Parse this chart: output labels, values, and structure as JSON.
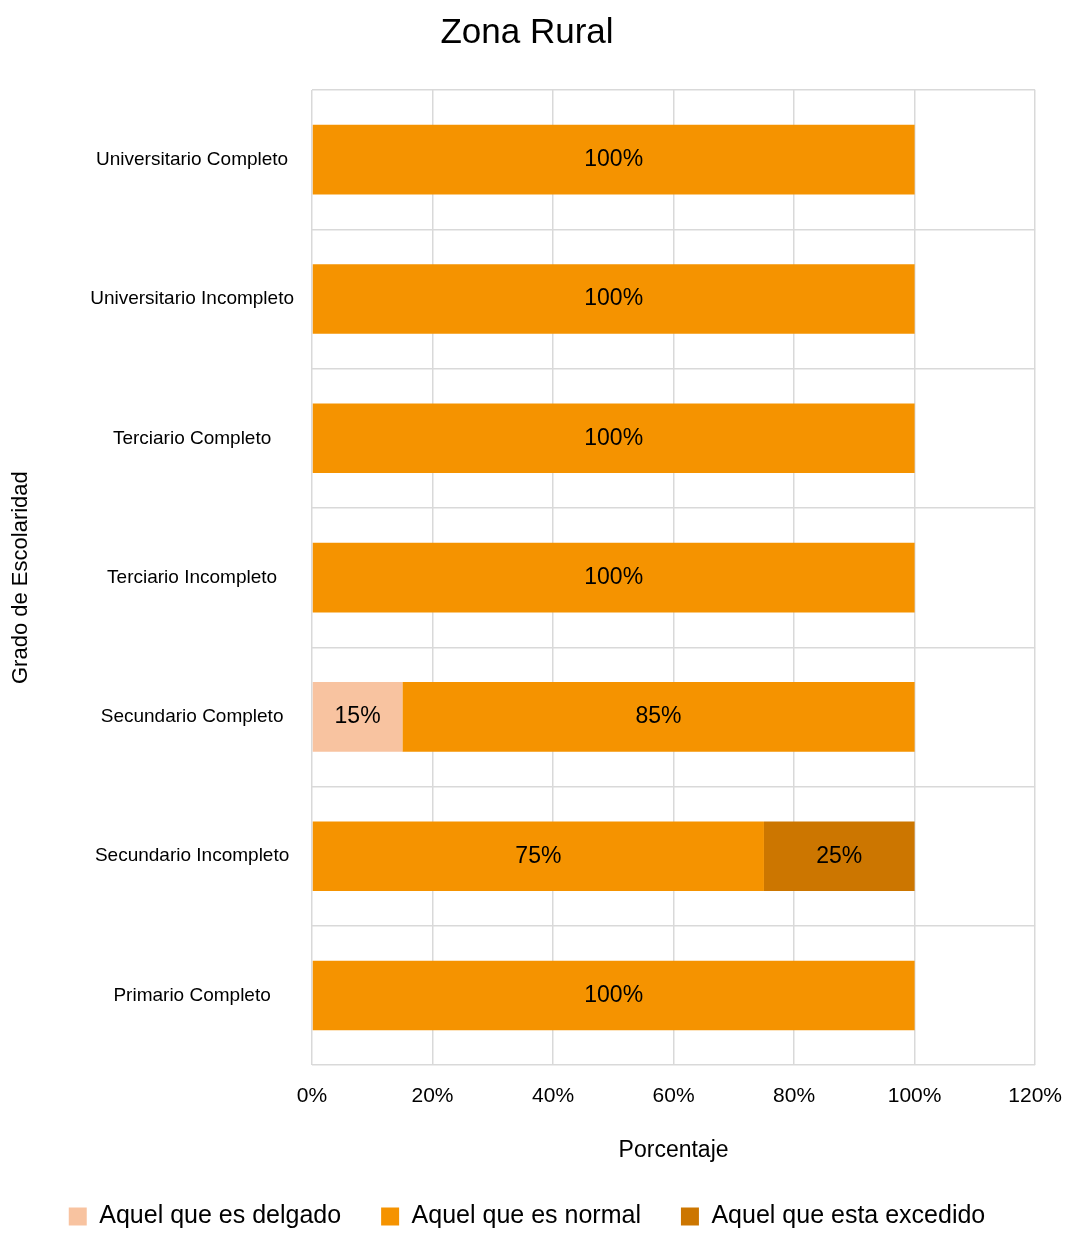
{
  "chart_data": {
    "type": "bar",
    "orientation": "horizontal",
    "stacked": true,
    "title": "Zona Rural",
    "xlabel": "Porcentaje",
    "ylabel": "Grado de Escolaridad",
    "categories": [
      "Universitario Completo",
      "Universitario Incompleto",
      "Terciario Completo",
      "Terciario Incompleto",
      "Secundario Completo",
      "Secundario Incompleto",
      "Primario Completo"
    ],
    "series": [
      {
        "name": "Aquel que es delgado",
        "color": "#f8c3a0",
        "values": [
          null,
          null,
          null,
          null,
          15,
          null,
          null
        ],
        "value_labels": [
          null,
          null,
          null,
          null,
          "15%",
          null,
          null
        ]
      },
      {
        "name": "Aquel que es normal",
        "color": "#f59300",
        "values": [
          100,
          100,
          100,
          100,
          85,
          75,
          100
        ],
        "value_labels": [
          "100%",
          "100%",
          "100%",
          "100%",
          "85%",
          "75%",
          "100%"
        ]
      },
      {
        "name": "Aquel que esta excedido",
        "color": "#cc7600",
        "values": [
          null,
          null,
          null,
          null,
          null,
          25,
          null
        ],
        "value_labels": [
          null,
          null,
          null,
          null,
          null,
          "25%",
          null
        ]
      }
    ],
    "xlim": [
      0,
      120
    ],
    "xticks": [
      {
        "value": 0,
        "label": "0%"
      },
      {
        "value": 20,
        "label": "20%"
      },
      {
        "value": 40,
        "label": "40%"
      },
      {
        "value": 60,
        "label": "60%"
      },
      {
        "value": 80,
        "label": "80%"
      },
      {
        "value": 100,
        "label": "100%"
      },
      {
        "value": 120,
        "label": "120%"
      }
    ],
    "grid": true,
    "legend": "bottom"
  }
}
